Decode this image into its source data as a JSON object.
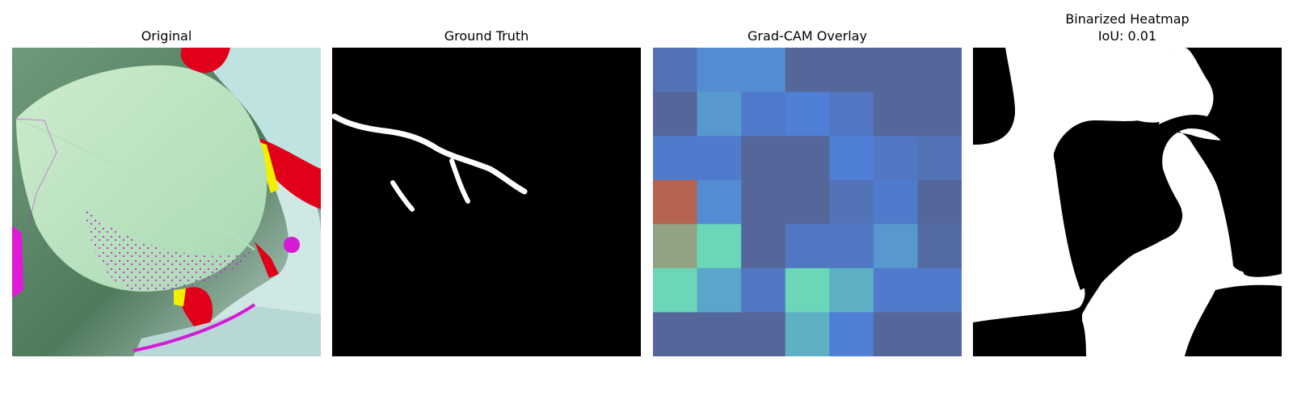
{
  "figure": {
    "panels": [
      {
        "title": "Original"
      },
      {
        "title": "Ground Truth"
      },
      {
        "title": "Grad-CAM Overlay"
      },
      {
        "title": "Binarized Heatmap",
        "subtitle": "IoU: 0.01"
      }
    ]
  },
  "colors": {
    "overlay_low": "#55679a",
    "overlay_mid": "#4f7fd6",
    "overlay_high": "#6de3b4",
    "overlay_hot": "#b46450",
    "mask_foreground": "#ffffff",
    "mask_background": "#000000"
  },
  "gradcam_grid": [
    [
      0.3,
      0.5,
      0.5,
      0.15,
      0.15,
      0.15,
      0.15
    ],
    [
      0.15,
      0.55,
      0.4,
      0.45,
      0.35,
      0.15,
      0.15
    ],
    [
      0.4,
      0.4,
      0.15,
      0.15,
      0.45,
      0.35,
      0.3
    ],
    [
      0.95,
      0.5,
      0.15,
      0.15,
      0.3,
      0.4,
      0.15
    ],
    [
      0.9,
      0.8,
      0.15,
      0.35,
      0.35,
      0.55,
      0.2
    ],
    [
      0.8,
      0.6,
      0.35,
      0.8,
      0.65,
      0.4,
      0.4
    ],
    [
      0.15,
      0.15,
      0.15,
      0.65,
      0.45,
      0.15,
      0.15
    ]
  ]
}
